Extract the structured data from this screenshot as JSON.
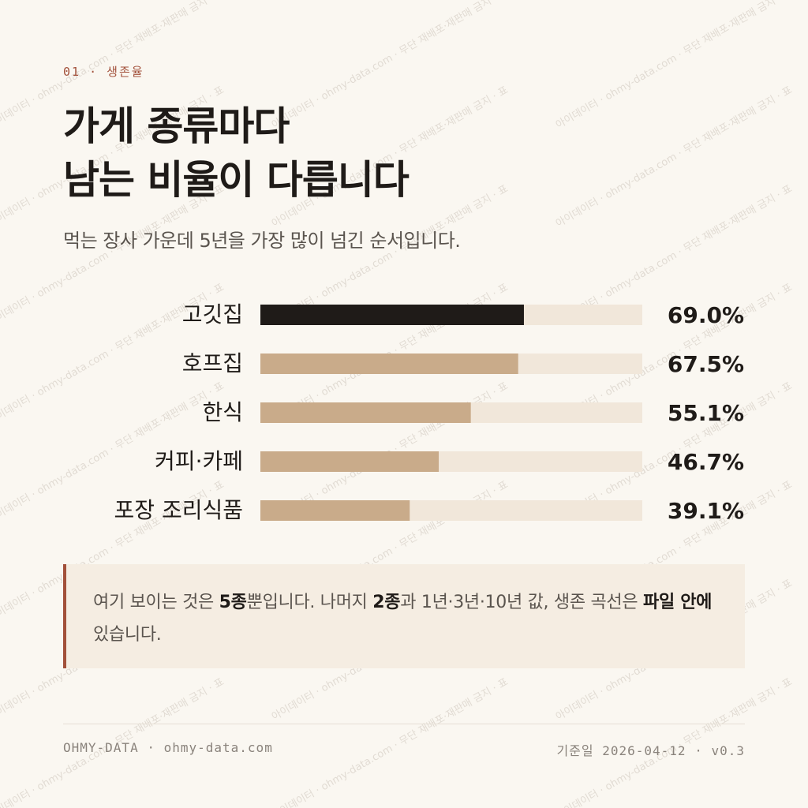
{
  "eyebrow": "01 · 생존율",
  "headline": [
    "가게 종류마다",
    "남는 비율이 다릅니다"
  ],
  "subtitle": "먹는 장사 가운데 5년을 가장 많이 넘긴 순서입니다.",
  "chart_data": {
    "type": "bar",
    "orientation": "horizontal",
    "categories": [
      "고깃집",
      "호프집",
      "한식",
      "커피·카페",
      "포장 조리식품"
    ],
    "values": [
      69.0,
      67.5,
      55.1,
      46.7,
      39.1
    ],
    "value_labels": [
      "69.0%",
      "67.5%",
      "55.1%",
      "46.7%",
      "39.1%"
    ],
    "xlim": [
      0,
      100
    ],
    "unit": "%",
    "highlight_index": 0,
    "colors": {
      "highlight": "#1f1b18",
      "bar": "#c9ab8a",
      "track": "#f1e7da",
      "label": "#1f1b18"
    }
  },
  "callout": {
    "parts": [
      {
        "text": "여기 보이는 것은 ",
        "bold": false
      },
      {
        "text": "5종",
        "bold": true
      },
      {
        "text": "뿐입니다. 나머지 ",
        "bold": false
      },
      {
        "text": "2종",
        "bold": true
      },
      {
        "text": "과 1년·3년·10년 값, 생존 곡선은 ",
        "bold": false
      },
      {
        "text": "파일 안에",
        "bold": true
      },
      {
        "text": " 있습니다.",
        "bold": false
      }
    ]
  },
  "footer": {
    "left": "OHMY-DATA · ohmy-data.com",
    "right": "기준일 2026-04-12 · v0.3"
  },
  "watermark": "아이데이터 · ohmy-data.com · 무단 재배포·재판매 금지 · 표",
  "colors": {
    "accent": "#a2503a",
    "background": "#faf7f1",
    "text": "#1f1b18",
    "muted": "#5a544e"
  }
}
